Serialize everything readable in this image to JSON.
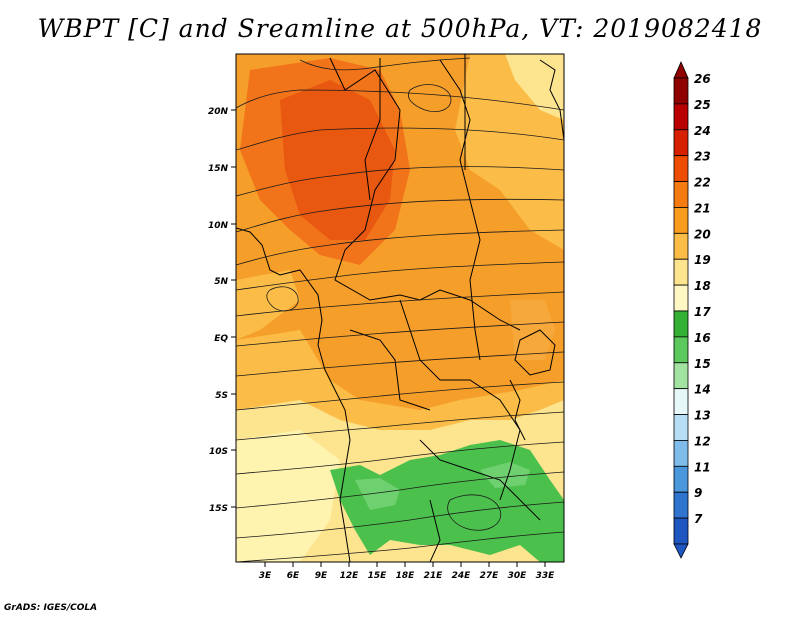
{
  "title": "WBPT [C] and Sreamline at 500hPa, VT: 2019082418",
  "credit": "GrADS: IGES/COLA",
  "map": {
    "lat_labels": [
      "20N",
      "15N",
      "10N",
      "5N",
      "EQ",
      "5S",
      "10S",
      "15S"
    ],
    "lon_labels": [
      "3E",
      "6E",
      "9E",
      "12E",
      "15E",
      "18E",
      "21E",
      "24E",
      "27E",
      "30E",
      "33E"
    ]
  },
  "colorbar": {
    "labels": [
      "26",
      "25",
      "24",
      "23",
      "22",
      "21",
      "20",
      "19",
      "18",
      "17",
      "16",
      "15",
      "14",
      "13",
      "12",
      "11",
      "9",
      "7"
    ],
    "colors": [
      "#8f0000",
      "#b80000",
      "#d62000",
      "#ee4c00",
      "#f57a10",
      "#f99c1e",
      "#fbbd47",
      "#fde48f",
      "#fff8c4",
      "#34b034",
      "#5cc95c",
      "#a2e3a2",
      "#e6f8f8",
      "#b8def5",
      "#7fbce9",
      "#4a97db",
      "#2f75d0",
      "#1e56c2"
    ]
  }
}
